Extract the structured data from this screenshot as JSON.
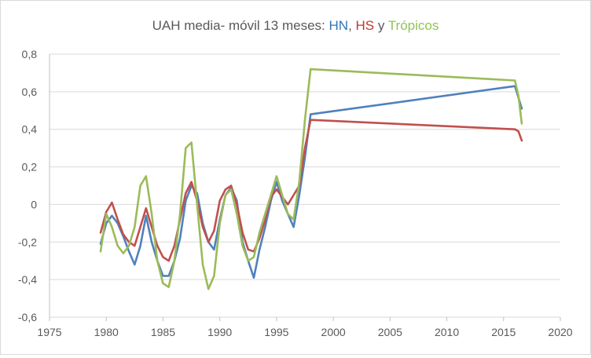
{
  "chart_data": {
    "type": "line",
    "title_parts": [
      {
        "text": "UAH media- móvil 13 meses: ",
        "color": "#595959"
      },
      {
        "text": "HN",
        "color": "#2e75b6"
      },
      {
        "text": ", ",
        "color": "#595959"
      },
      {
        "text": "HS",
        "color": "#c0392b"
      },
      {
        "text": " y ",
        "color": "#595959"
      },
      {
        "text": "Trópicos",
        "color": "#92c353"
      }
    ],
    "xlabel": "",
    "ylabel": "",
    "xlim": [
      1975,
      2020
    ],
    "ylim": [
      -0.6,
      0.8
    ],
    "x_ticks": [
      1975,
      1980,
      1985,
      1990,
      1995,
      2000,
      2005,
      2010,
      2015,
      2020
    ],
    "y_ticks": [
      -0.6,
      -0.4,
      -0.2,
      0,
      0.2,
      0.4,
      0.6,
      0.8
    ],
    "y_tick_labels": [
      "-0,6",
      "-0,4",
      "-0,2",
      "0",
      "0,2",
      "0,4",
      "0,6",
      "0,8"
    ],
    "grid": "horizontal",
    "legend": "none",
    "series": [
      {
        "name": "HN",
        "color": "#4f81bd",
        "points": [
          [
            1979.5,
            -0.21
          ],
          [
            1980,
            -0.1
          ],
          [
            1980.5,
            -0.06
          ],
          [
            1981,
            -0.1
          ],
          [
            1981.5,
            -0.17
          ],
          [
            1982,
            -0.25
          ],
          [
            1982.5,
            -0.32
          ],
          [
            1983,
            -0.22
          ],
          [
            1983.5,
            -0.06
          ],
          [
            1984,
            -0.2
          ],
          [
            1984.5,
            -0.3
          ],
          [
            1985,
            -0.38
          ],
          [
            1985.5,
            -0.38
          ],
          [
            1986,
            -0.3
          ],
          [
            1986.5,
            -0.18
          ],
          [
            1987,
            0.02
          ],
          [
            1987.5,
            0.1
          ],
          [
            1988,
            0.06
          ],
          [
            1988.5,
            -0.1
          ],
          [
            1989,
            -0.2
          ],
          [
            1989.5,
            -0.24
          ],
          [
            1990,
            -0.08
          ],
          [
            1990.5,
            0.05
          ],
          [
            1991,
            0.09
          ],
          [
            1991.5,
            0.02
          ],
          [
            1992,
            -0.2
          ],
          [
            1992.5,
            -0.3
          ],
          [
            1993,
            -0.39
          ],
          [
            1993.5,
            -0.24
          ],
          [
            1994,
            -0.12
          ],
          [
            1994.5,
            0.02
          ],
          [
            1995,
            0.12
          ],
          [
            1995.5,
            0.02
          ],
          [
            1996,
            -0.05
          ],
          [
            1996.5,
            -0.12
          ],
          [
            1997,
            0.05
          ],
          [
            1997.5,
            0.25
          ],
          [
            1998,
            0.48
          ],
          [
            2016,
            0.63
          ],
          [
            2016.3,
            0.57
          ],
          [
            2016.6,
            0.51
          ]
        ]
      },
      {
        "name": "HS",
        "color": "#c0504d",
        "points": [
          [
            1979.5,
            -0.15
          ],
          [
            1980,
            -0.04
          ],
          [
            1980.5,
            0.01
          ],
          [
            1981,
            -0.08
          ],
          [
            1981.5,
            -0.16
          ],
          [
            1982,
            -0.2
          ],
          [
            1982.5,
            -0.22
          ],
          [
            1983,
            -0.12
          ],
          [
            1983.5,
            -0.02
          ],
          [
            1984,
            -0.12
          ],
          [
            1984.5,
            -0.22
          ],
          [
            1985,
            -0.28
          ],
          [
            1985.5,
            -0.3
          ],
          [
            1986,
            -0.22
          ],
          [
            1986.5,
            -0.08
          ],
          [
            1987,
            0.06
          ],
          [
            1987.5,
            0.12
          ],
          [
            1988,
            0.02
          ],
          [
            1988.5,
            -0.12
          ],
          [
            1989,
            -0.2
          ],
          [
            1989.5,
            -0.14
          ],
          [
            1990,
            0.02
          ],
          [
            1990.5,
            0.08
          ],
          [
            1991,
            0.1
          ],
          [
            1991.5,
            0.0
          ],
          [
            1992,
            -0.15
          ],
          [
            1992.5,
            -0.24
          ],
          [
            1993,
            -0.25
          ],
          [
            1993.5,
            -0.18
          ],
          [
            1994,
            -0.08
          ],
          [
            1994.5,
            0.04
          ],
          [
            1995,
            0.08
          ],
          [
            1995.5,
            0.04
          ],
          [
            1996,
            0.0
          ],
          [
            1996.5,
            0.05
          ],
          [
            1997,
            0.1
          ],
          [
            1997.5,
            0.3
          ],
          [
            1998,
            0.45
          ],
          [
            2016,
            0.4
          ],
          [
            2016.3,
            0.39
          ],
          [
            2016.6,
            0.34
          ]
        ]
      },
      {
        "name": "Trópicos",
        "color": "#9bbb59",
        "points": [
          [
            1979.5,
            -0.25
          ],
          [
            1980,
            -0.05
          ],
          [
            1980.5,
            -0.12
          ],
          [
            1981,
            -0.22
          ],
          [
            1981.5,
            -0.26
          ],
          [
            1982,
            -0.22
          ],
          [
            1982.5,
            -0.12
          ],
          [
            1983,
            0.1
          ],
          [
            1983.5,
            0.15
          ],
          [
            1984,
            -0.05
          ],
          [
            1984.5,
            -0.3
          ],
          [
            1985,
            -0.42
          ],
          [
            1985.5,
            -0.44
          ],
          [
            1986,
            -0.3
          ],
          [
            1986.5,
            -0.05
          ],
          [
            1987,
            0.3
          ],
          [
            1987.5,
            0.33
          ],
          [
            1988,
            0.0
          ],
          [
            1988.5,
            -0.32
          ],
          [
            1989,
            -0.45
          ],
          [
            1989.5,
            -0.38
          ],
          [
            1990,
            -0.1
          ],
          [
            1990.5,
            0.05
          ],
          [
            1991,
            0.08
          ],
          [
            1991.5,
            -0.05
          ],
          [
            1992,
            -0.22
          ],
          [
            1992.5,
            -0.3
          ],
          [
            1993,
            -0.28
          ],
          [
            1993.5,
            -0.15
          ],
          [
            1994,
            -0.05
          ],
          [
            1994.5,
            0.05
          ],
          [
            1995,
            0.15
          ],
          [
            1995.5,
            0.05
          ],
          [
            1996,
            -0.05
          ],
          [
            1996.5,
            -0.08
          ],
          [
            1997,
            0.12
          ],
          [
            1997.5,
            0.45
          ],
          [
            1998,
            0.72
          ],
          [
            2016,
            0.66
          ],
          [
            2016.3,
            0.58
          ],
          [
            2016.6,
            0.43
          ]
        ]
      }
    ]
  }
}
